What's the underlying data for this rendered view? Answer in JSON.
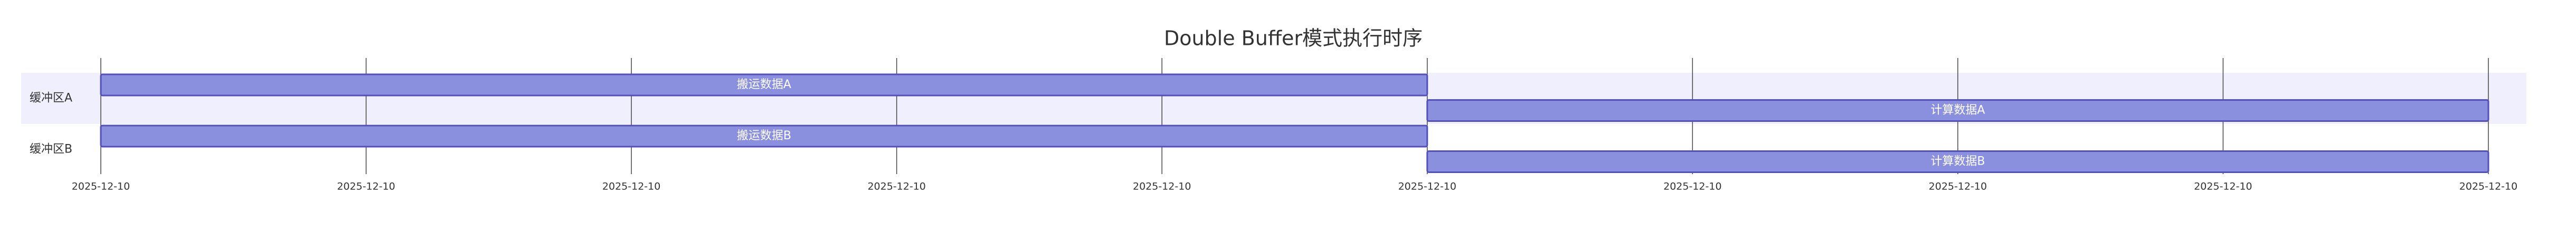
{
  "chart_data": {
    "type": "gantt",
    "title": "Double Buffer模式执行时序",
    "xlim": [
      0,
      9
    ],
    "xticks": [
      {
        "value": 0,
        "label": "2025-12-10"
      },
      {
        "value": 1,
        "label": "2025-12-10"
      },
      {
        "value": 2,
        "label": "2025-12-10"
      },
      {
        "value": 3,
        "label": "2025-12-10"
      },
      {
        "value": 4,
        "label": "2025-12-10"
      },
      {
        "value": 5,
        "label": "2025-12-10"
      },
      {
        "value": 6,
        "label": "2025-12-10"
      },
      {
        "value": 7,
        "label": "2025-12-10"
      },
      {
        "value": 8,
        "label": "2025-12-10"
      },
      {
        "value": 9,
        "label": "2025-12-10"
      }
    ],
    "grid": true,
    "color": "#8a90dd",
    "border_color": "#534fbc",
    "section_colors": [
      "#efeffd",
      "#ffffff"
    ],
    "sections": [
      {
        "name": "缓冲区A",
        "tasks": [
          {
            "name": "搬运数据A",
            "start": 0,
            "end": 5
          },
          {
            "name": "计算数据A",
            "start": 5,
            "end": 9
          }
        ]
      },
      {
        "name": "缓冲区B",
        "tasks": [
          {
            "name": "搬运数据B",
            "start": 0,
            "end": 5
          },
          {
            "name": "计算数据B",
            "start": 5,
            "end": 9
          }
        ]
      }
    ]
  }
}
